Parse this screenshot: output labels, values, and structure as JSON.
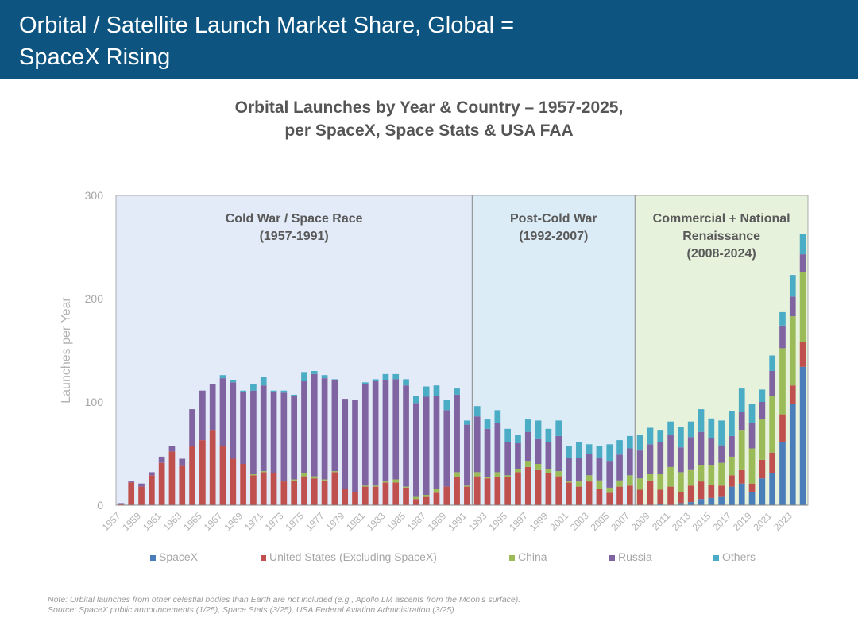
{
  "header": {
    "line1": "Orbital / Satellite Launch Market Share, Global =",
    "line2": "SpaceX Rising"
  },
  "chart_title": {
    "line1": "Orbital Launches by Year & Country – 1957-2025,",
    "line2": "per SpaceX, Space Stats & USA FAA"
  },
  "footnote": {
    "line1": "Note: Orbital launches from other celestial bodies than Earth are not included (e.g., Apollo LM ascents from the Moon's surface).",
    "line2": "Source: SpaceX public announcements (1/25), Space Stats (3/25), USA Federal Aviation Administration (3/25)"
  },
  "chart_data": {
    "type": "bar",
    "stacked": true,
    "ylabel": "Launches per Year",
    "ylim": [
      0,
      300
    ],
    "yticks": [
      0,
      100,
      200,
      300
    ],
    "x": [
      1957,
      1958,
      1959,
      1960,
      1961,
      1962,
      1963,
      1964,
      1965,
      1966,
      1967,
      1968,
      1969,
      1970,
      1971,
      1972,
      1973,
      1974,
      1975,
      1976,
      1977,
      1978,
      1979,
      1980,
      1981,
      1982,
      1983,
      1984,
      1985,
      1986,
      1987,
      1988,
      1989,
      1990,
      1991,
      1992,
      1993,
      1994,
      1995,
      1996,
      1997,
      1998,
      1999,
      2000,
      2001,
      2002,
      2003,
      2004,
      2005,
      2006,
      2007,
      2008,
      2009,
      2010,
      2011,
      2012,
      2013,
      2014,
      2015,
      2016,
      2017,
      2018,
      2019,
      2020,
      2021,
      2022,
      2023,
      2024
    ],
    "xtick_labels": [
      "1957",
      "1959",
      "1961",
      "1963",
      "1965",
      "1967",
      "1969",
      "1971",
      "1973",
      "1975",
      "1977",
      "1979",
      "1981",
      "1983",
      "1985",
      "1987",
      "1989",
      "1991",
      "1993",
      "1995",
      "1997",
      "1999",
      "2001",
      "2003",
      "2005",
      "2007",
      "2009",
      "2011",
      "2013",
      "2015",
      "2017",
      "2019",
      "2021",
      "2023"
    ],
    "series": [
      {
        "name": "SpaceX",
        "color": "#4a7ebb",
        "values": [
          0,
          0,
          0,
          0,
          0,
          0,
          0,
          0,
          0,
          0,
          0,
          0,
          0,
          0,
          0,
          0,
          0,
          0,
          0,
          0,
          0,
          0,
          0,
          0,
          0,
          0,
          0,
          0,
          0,
          0,
          0,
          0,
          0,
          0,
          0,
          0,
          0,
          0,
          0,
          0,
          0,
          0,
          0,
          0,
          0,
          0,
          0,
          0,
          0,
          0,
          0,
          0,
          0,
          1,
          0,
          2,
          3,
          6,
          7,
          8,
          18,
          21,
          13,
          26,
          31,
          61,
          98,
          134
        ]
      },
      {
        "name": "United States (Excluding SpaceX)",
        "color": "#c0504d",
        "values": [
          1,
          22,
          18,
          29,
          41,
          52,
          38,
          57,
          63,
          73,
          57,
          45,
          40,
          29,
          32,
          31,
          23,
          24,
          28,
          26,
          24,
          32,
          16,
          13,
          18,
          18,
          22,
          22,
          17,
          6,
          8,
          12,
          18,
          27,
          18,
          28,
          26,
          27,
          27,
          32,
          37,
          34,
          31,
          28,
          22,
          18,
          23,
          16,
          12,
          18,
          19,
          15,
          24,
          14,
          18,
          11,
          16,
          17,
          13,
          11,
          11,
          13,
          8,
          18,
          20,
          27,
          18,
          24
        ]
      },
      {
        "name": "China",
        "color": "#9bbb59",
        "values": [
          0,
          0,
          0,
          0,
          0,
          0,
          0,
          0,
          0,
          0,
          0,
          0,
          0,
          1,
          1,
          0,
          0,
          1,
          3,
          2,
          1,
          1,
          0,
          0,
          1,
          1,
          1,
          3,
          1,
          2,
          2,
          4,
          0,
          5,
          1,
          4,
          1,
          5,
          2,
          3,
          6,
          6,
          4,
          5,
          1,
          5,
          6,
          8,
          5,
          6,
          10,
          11,
          6,
          15,
          19,
          19,
          15,
          16,
          19,
          22,
          18,
          39,
          34,
          39,
          55,
          64,
          67,
          68
        ]
      },
      {
        "name": "Russia",
        "color": "#8064a2",
        "values": [
          1,
          1,
          3,
          3,
          6,
          5,
          7,
          36,
          48,
          44,
          66,
          74,
          70,
          81,
          83,
          79,
          86,
          81,
          89,
          99,
          98,
          88,
          87,
          89,
          98,
          101,
          98,
          97,
          98,
          91,
          95,
          90,
          74,
          75,
          59,
          54,
          47,
          48,
          32,
          25,
          28,
          24,
          26,
          34,
          23,
          23,
          21,
          22,
          26,
          25,
          26,
          27,
          29,
          31,
          31,
          24,
          32,
          32,
          26,
          17,
          20,
          17,
          25,
          17,
          24,
          22,
          19,
          17
        ]
      },
      {
        "name": "Others",
        "color": "#4bacc6",
        "values": [
          0,
          0,
          0,
          0,
          0,
          0,
          0,
          0,
          0,
          0,
          3,
          2,
          1,
          6,
          8,
          1,
          2,
          1,
          9,
          3,
          3,
          1,
          0,
          0,
          2,
          2,
          6,
          5,
          6,
          7,
          10,
          10,
          10,
          6,
          4,
          10,
          9,
          12,
          13,
          8,
          12,
          18,
          13,
          15,
          11,
          15,
          9,
          11,
          16,
          14,
          12,
          15,
          16,
          12,
          13,
          20,
          15,
          22,
          19,
          24,
          24,
          23,
          18,
          12,
          15,
          13,
          21,
          20
        ]
      }
    ],
    "eras": [
      {
        "label_line1": "Cold War / Space Race",
        "label_line2": "(1957-1991)",
        "label_line3": "",
        "from": 1957,
        "to": 1991,
        "color": "#e4ebf8"
      },
      {
        "label_line1": "Post-Cold War",
        "label_line2": "(1992-2007)",
        "label_line3": "",
        "from": 1992,
        "to": 2007,
        "color": "#dcecf6"
      },
      {
        "label_line1": "Commercial + National",
        "label_line2": "Renaissance",
        "label_line3": "(2008-2024)",
        "from": 2008,
        "to": 2024,
        "color": "#e7f2dc"
      }
    ],
    "grid": "top dashed line only",
    "legend": "bottom"
  }
}
